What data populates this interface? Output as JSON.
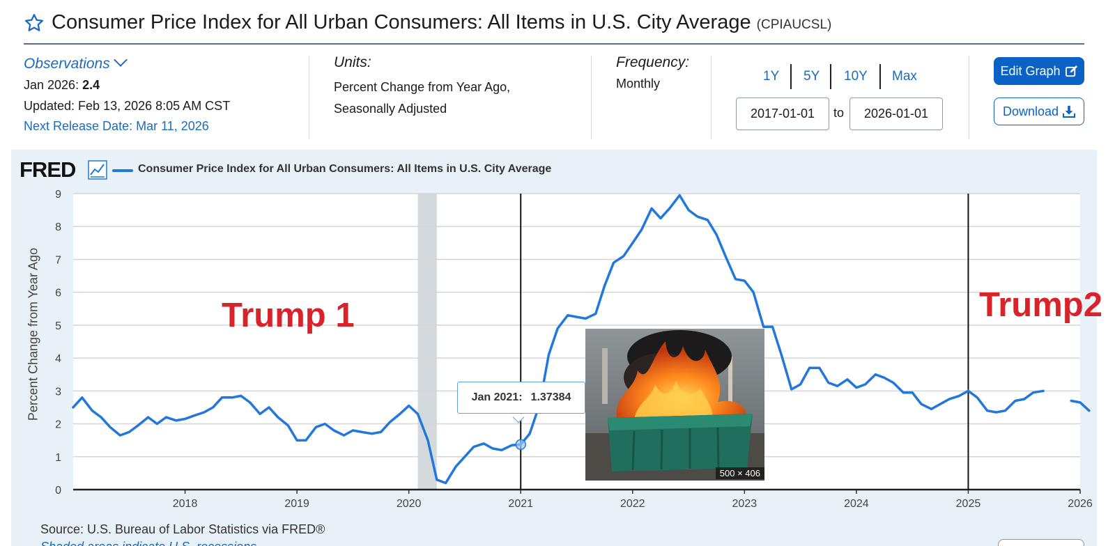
{
  "header": {
    "title": "Consumer Price Index for All Urban Consumers: All Items in U.S. City Average",
    "series_id": "(CPIAUCSL)"
  },
  "observations": {
    "toggle_label": "Observations",
    "latest_label": "Jan 2026:",
    "latest_value": "2.4",
    "updated": "Updated: Feb 13, 2026 8:05 AM CST",
    "next_release": "Next Release Date: Mar 11, 2026"
  },
  "units": {
    "label": "Units:",
    "line1": "Percent Change from Year Ago,",
    "line2": "Seasonally Adjusted"
  },
  "frequency": {
    "label": "Frequency:",
    "value": "Monthly"
  },
  "range_buttons": [
    "1Y",
    "5Y",
    "10Y",
    "Max"
  ],
  "date_range": {
    "start": "2017-01-01",
    "separator": "to",
    "end": "2026-01-01"
  },
  "actions": {
    "edit_label": "Edit Graph",
    "download_label": "Download"
  },
  "legend": {
    "logo": "FRED",
    "series_label": "Consumer Price Index for All Urban Consumers: All Items in U.S. City Average"
  },
  "annotations": {
    "trump1": "Trump 1",
    "trump2": "Trump2"
  },
  "tooltip": {
    "date": "Jan 2021:",
    "value": "1.37384"
  },
  "photo": {
    "dims": "500 × 406"
  },
  "footer": {
    "source": "Source: U.S. Bureau of Labor Statistics via FRED®",
    "recession_note": "Shaded areas indicate U.S. recessions"
  },
  "colors": {
    "line": "#2277dd",
    "accent": "#0b62c4",
    "annotation": "#d9232b",
    "recession": "#d4d9de"
  },
  "chart_data": {
    "type": "line",
    "title": "Consumer Price Index for All Urban Consumers: All Items in U.S. City Average",
    "ylabel": "Percent Change from Year Ago",
    "xlabel": "",
    "ylim": [
      0,
      9
    ],
    "yticks": [
      "0",
      "1",
      "2",
      "3",
      "4",
      "5",
      "6",
      "7",
      "8",
      "9"
    ],
    "xlim": [
      2017.0,
      2026.0
    ],
    "xticks": [
      {
        "value": 2018,
        "label": "2018"
      },
      {
        "value": 2019,
        "label": "2019"
      },
      {
        "value": 2020,
        "label": "2020"
      },
      {
        "value": 2021,
        "label": "2021"
      },
      {
        "value": 2022,
        "label": "2022"
      },
      {
        "value": 2023,
        "label": "2023"
      },
      {
        "value": 2024,
        "label": "2024"
      },
      {
        "value": 2025,
        "label": "2025"
      },
      {
        "value": 2026,
        "label": "2026"
      }
    ],
    "recession": [
      2020.08,
      2020.25
    ],
    "markers": [
      2021.0,
      2025.0
    ],
    "highlight": {
      "x": 2021.0,
      "y": 1.37
    },
    "series": [
      {
        "name": "CPIAUCSL",
        "segments": [
          [
            [
              2017.0,
              2.5
            ],
            [
              2017.08,
              2.8
            ],
            [
              2017.17,
              2.4
            ],
            [
              2017.25,
              2.2
            ],
            [
              2017.33,
              1.9
            ],
            [
              2017.42,
              1.65
            ],
            [
              2017.5,
              1.75
            ],
            [
              2017.58,
              1.95
            ],
            [
              2017.67,
              2.2
            ],
            [
              2017.75,
              2.0
            ],
            [
              2017.83,
              2.2
            ],
            [
              2017.92,
              2.1
            ],
            [
              2018.0,
              2.15
            ],
            [
              2018.08,
              2.25
            ],
            [
              2018.17,
              2.35
            ],
            [
              2018.25,
              2.5
            ],
            [
              2018.33,
              2.8
            ],
            [
              2018.42,
              2.8
            ],
            [
              2018.5,
              2.85
            ],
            [
              2018.58,
              2.65
            ],
            [
              2018.67,
              2.3
            ],
            [
              2018.75,
              2.5
            ],
            [
              2018.83,
              2.2
            ],
            [
              2018.92,
              1.95
            ],
            [
              2019.0,
              1.5
            ],
            [
              2019.08,
              1.5
            ],
            [
              2019.17,
              1.9
            ],
            [
              2019.25,
              2.0
            ],
            [
              2019.33,
              1.8
            ],
            [
              2019.42,
              1.65
            ],
            [
              2019.5,
              1.8
            ],
            [
              2019.58,
              1.75
            ],
            [
              2019.67,
              1.7
            ],
            [
              2019.75,
              1.75
            ],
            [
              2019.83,
              2.05
            ],
            [
              2019.92,
              2.3
            ],
            [
              2020.0,
              2.55
            ],
            [
              2020.08,
              2.3
            ],
            [
              2020.17,
              1.5
            ],
            [
              2020.25,
              0.3
            ],
            [
              2020.33,
              0.2
            ],
            [
              2020.42,
              0.7
            ],
            [
              2020.5,
              1.0
            ],
            [
              2020.58,
              1.3
            ],
            [
              2020.67,
              1.4
            ],
            [
              2020.75,
              1.25
            ],
            [
              2020.83,
              1.2
            ],
            [
              2020.92,
              1.35
            ],
            [
              2021.0,
              1.37
            ],
            [
              2021.08,
              1.7
            ],
            [
              2021.17,
              2.6
            ],
            [
              2021.25,
              4.1
            ],
            [
              2021.33,
              4.9
            ],
            [
              2021.42,
              5.3
            ],
            [
              2021.5,
              5.25
            ],
            [
              2021.58,
              5.2
            ],
            [
              2021.67,
              5.35
            ],
            [
              2021.75,
              6.2
            ],
            [
              2021.83,
              6.9
            ],
            [
              2021.92,
              7.1
            ],
            [
              2022.0,
              7.5
            ],
            [
              2022.08,
              7.9
            ],
            [
              2022.17,
              8.55
            ],
            [
              2022.25,
              8.25
            ],
            [
              2022.33,
              8.55
            ],
            [
              2022.42,
              8.95
            ],
            [
              2022.5,
              8.5
            ],
            [
              2022.58,
              8.3
            ],
            [
              2022.67,
              8.2
            ],
            [
              2022.75,
              7.75
            ],
            [
              2022.83,
              7.1
            ],
            [
              2022.92,
              6.4
            ],
            [
              2023.0,
              6.35
            ],
            [
              2023.08,
              6.0
            ],
            [
              2023.17,
              4.95
            ],
            [
              2023.25,
              4.95
            ],
            [
              2023.33,
              4.1
            ],
            [
              2023.42,
              3.05
            ],
            [
              2023.5,
              3.2
            ],
            [
              2023.58,
              3.7
            ],
            [
              2023.67,
              3.7
            ],
            [
              2023.75,
              3.25
            ],
            [
              2023.83,
              3.15
            ],
            [
              2023.92,
              3.35
            ],
            [
              2024.0,
              3.1
            ],
            [
              2024.08,
              3.2
            ],
            [
              2024.17,
              3.5
            ],
            [
              2024.25,
              3.4
            ],
            [
              2024.33,
              3.25
            ],
            [
              2024.42,
              2.95
            ],
            [
              2024.5,
              2.95
            ],
            [
              2024.58,
              2.6
            ],
            [
              2024.67,
              2.45
            ],
            [
              2024.75,
              2.6
            ],
            [
              2024.83,
              2.75
            ],
            [
              2024.92,
              2.85
            ],
            [
              2025.0,
              3.0
            ],
            [
              2025.08,
              2.8
            ],
            [
              2025.17,
              2.4
            ],
            [
              2025.25,
              2.35
            ],
            [
              2025.33,
              2.4
            ],
            [
              2025.42,
              2.7
            ],
            [
              2025.5,
              2.75
            ],
            [
              2025.58,
              2.95
            ],
            [
              2025.67,
              3.0
            ]
          ],
          [
            [
              2025.92,
              2.7
            ],
            [
              2026.0,
              2.65
            ],
            [
              2026.08,
              2.4
            ]
          ]
        ]
      }
    ]
  }
}
